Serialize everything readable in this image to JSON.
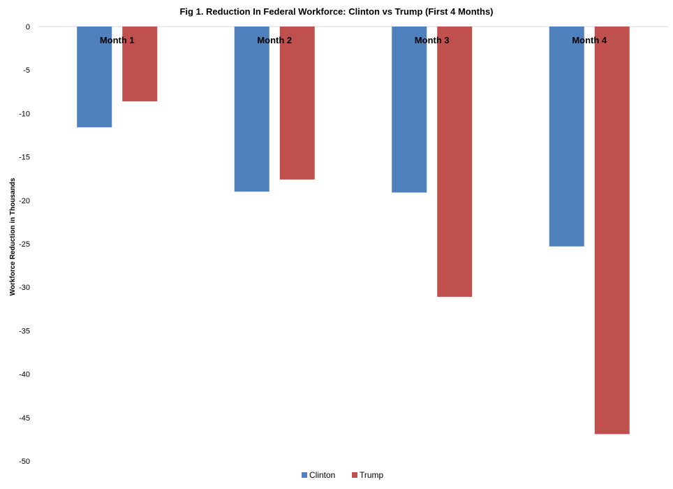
{
  "chart_data": {
    "type": "bar",
    "title": "Fig 1. Reduction In Federal Workforce: Clinton vs Trump (First 4 Months)",
    "xlabel": "",
    "ylabel": "Workforce Reduction in Thousands",
    "ylim": [
      -50,
      0
    ],
    "yticks": [
      0,
      -5,
      -10,
      -15,
      -20,
      -25,
      -30,
      -35,
      -40,
      -45,
      -50
    ],
    "categories": [
      "Month 1",
      "Month 2",
      "Month 3",
      "Month 4"
    ],
    "series": [
      {
        "name": "Clinton",
        "color": "#4f81bd",
        "values": [
          -11.6,
          -19.0,
          -19.1,
          -25.3
        ]
      },
      {
        "name": "Trump",
        "color": "#c0504d",
        "values": [
          -8.6,
          -17.6,
          -31.1,
          -46.9
        ]
      }
    ],
    "legend": {
      "position": "bottom",
      "entries": [
        "Clinton",
        "Trump"
      ]
    },
    "grid": false
  }
}
